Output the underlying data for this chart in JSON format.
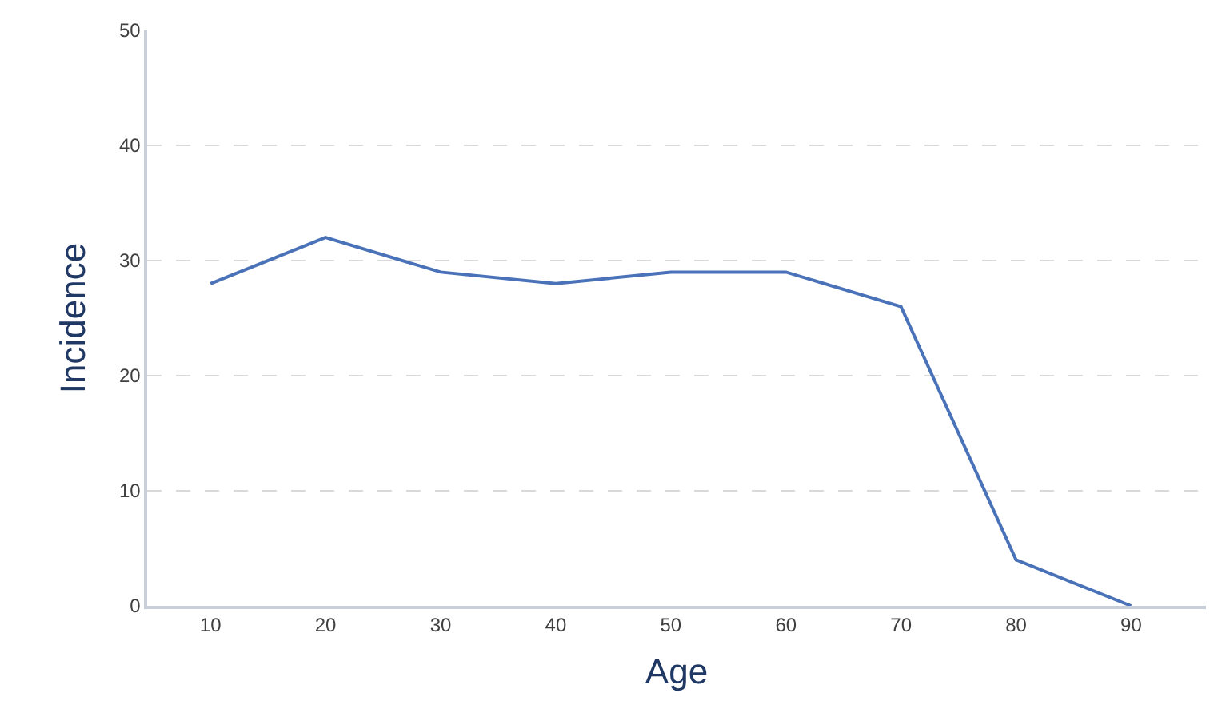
{
  "chart_data": {
    "type": "line",
    "xlabel": "Age",
    "ylabel": "Incidence",
    "categories": [
      "10",
      "20",
      "30",
      "40",
      "50",
      "60",
      "70",
      "80",
      "90"
    ],
    "series": [
      {
        "color": "#4a72b8",
        "values": [
          28,
          32,
          29,
          28,
          29,
          29,
          26,
          4,
          0
        ]
      }
    ],
    "ylim": [
      0,
      50
    ],
    "yticks": [
      0,
      10,
      20,
      30,
      40,
      50
    ],
    "grid": "y",
    "marker": "none",
    "line_style": "solid"
  }
}
